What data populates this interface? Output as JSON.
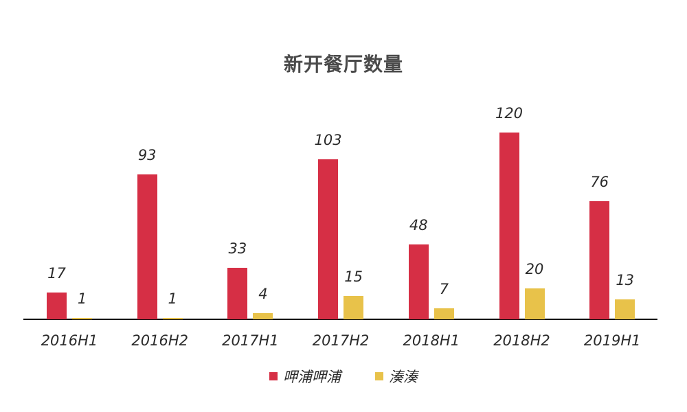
{
  "title": "新开餐厅数量",
  "colors": {
    "series_a": "#D62F45",
    "series_b": "#E8C24A",
    "axis": "#111111",
    "text": "#2b2b2b",
    "title": "#4a4a4a"
  },
  "legend": [
    {
      "label": "呷浦呷浦",
      "color": "#D62F45"
    },
    {
      "label": "湊湊",
      "color": "#E8C24A"
    }
  ],
  "chart_data": {
    "type": "bar",
    "title": "新开餐厅数量",
    "xlabel": "",
    "ylabel": "",
    "categories": [
      "2016H1",
      "2016H2",
      "2017H1",
      "2017H2",
      "2018H1",
      "2018H2",
      "2019H1"
    ],
    "series": [
      {
        "name": "呷浦呷浦",
        "color": "#D62F45",
        "values": [
          17,
          93,
          33,
          103,
          48,
          120,
          76
        ]
      },
      {
        "name": "湊湊",
        "color": "#E8C24A",
        "values": [
          1,
          1,
          4,
          15,
          7,
          20,
          13
        ]
      }
    ],
    "ylim": [
      0,
      120
    ],
    "grid": false,
    "legend_position": "bottom",
    "data_labels": true
  }
}
